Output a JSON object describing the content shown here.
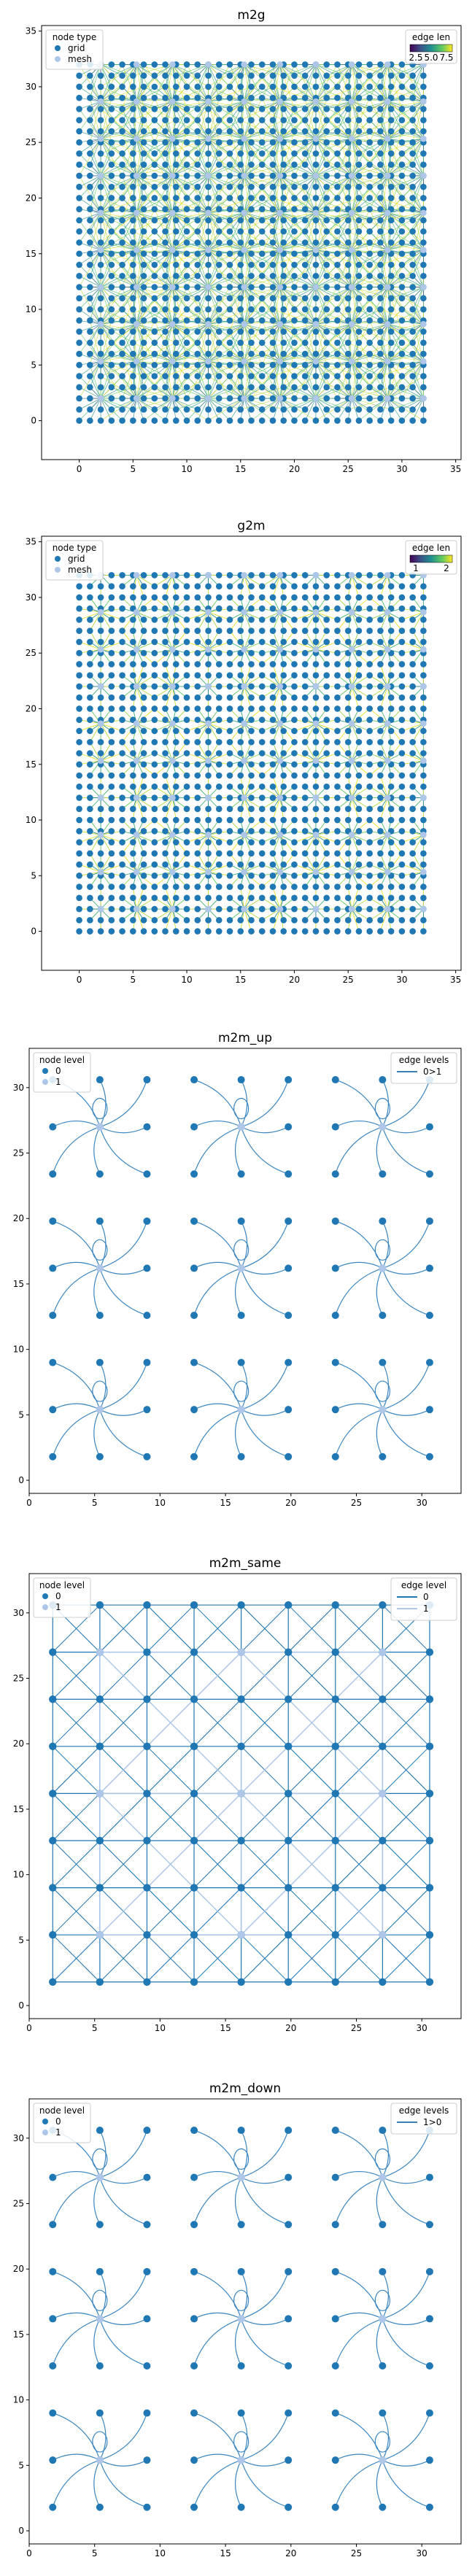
{
  "colors": {
    "level0": "#1f77b4",
    "level1": "#aec7e8",
    "mid": "#3b9ab2",
    "viridis": [
      "#440154",
      "#3b528b",
      "#21908d",
      "#5dc963",
      "#fde725"
    ]
  },
  "chart_data": [
    {
      "type": "scatter",
      "title": "m2g",
      "xlim": [
        -3.5,
        35.5
      ],
      "ylim": [
        -3.5,
        35.5
      ],
      "xticks": [
        "0",
        "5",
        "10",
        "15",
        "20",
        "25",
        "30",
        "35"
      ],
      "yticks": [
        "0",
        "5",
        "10",
        "15",
        "20",
        "25",
        "30",
        "35"
      ],
      "legend_title": "node type",
      "legend_loc": "upper-left",
      "series": [
        {
          "name": "grid",
          "color": "#1f77b4",
          "x_range": [
            0,
            32
          ],
          "y_range": [
            0,
            32
          ],
          "count_per_axis": 32
        },
        {
          "name": "mesh",
          "color": "#aec7e8",
          "x": [
            2,
            5.3,
            8.7,
            12,
            15.3,
            18.7,
            22,
            25.3,
            28.7,
            32
          ],
          "y": [
            2,
            5.3,
            8.7,
            12,
            15.3,
            18.7,
            22,
            25.3,
            28.7,
            32
          ]
        }
      ],
      "colorbar": {
        "title": "edge len",
        "ticks": [
          "2.5",
          "5.0",
          "7.5"
        ],
        "loc": "upper-right",
        "cmap": "viridis"
      },
      "edges": {
        "description": "mesh to grid edges",
        "max_len": 7.5
      }
    },
    {
      "type": "scatter",
      "title": "g2m",
      "xlim": [
        -3.5,
        35.5
      ],
      "ylim": [
        -3.5,
        35.5
      ],
      "xticks": [
        "0",
        "5",
        "10",
        "15",
        "20",
        "25",
        "30",
        "35"
      ],
      "yticks": [
        "0",
        "5",
        "10",
        "15",
        "20",
        "25",
        "30",
        "35"
      ],
      "legend_title": "node type",
      "legend_loc": "upper-left",
      "series": [
        {
          "name": "grid",
          "color": "#1f77b4"
        },
        {
          "name": "mesh",
          "color": "#aec7e8"
        }
      ],
      "colorbar": {
        "title": "edge len",
        "ticks": [
          "1",
          "2"
        ],
        "loc": "upper-right",
        "cmap": "viridis"
      }
    },
    {
      "type": "scatter",
      "title": "m2m_up",
      "xlim": [
        0,
        33
      ],
      "ylim": [
        -1,
        33
      ],
      "xticks": [
        "0",
        "5",
        "10",
        "15",
        "20",
        "25",
        "30"
      ],
      "yticks": [
        "0",
        "5",
        "10",
        "15",
        "20",
        "25",
        "30"
      ],
      "legend_title": "node level",
      "legend_loc": "upper-left",
      "series": [
        {
          "name": "0",
          "color": "#1f77b4"
        },
        {
          "name": "1",
          "color": "#aec7e8"
        }
      ],
      "edge_legend": {
        "title": "edge levels",
        "entries": [
          {
            "name": "0>1",
            "color": "#3b7fb4"
          }
        ],
        "loc": "upper-right"
      }
    },
    {
      "type": "scatter",
      "title": "m2m_same",
      "xlim": [
        0,
        33
      ],
      "ylim": [
        -1,
        33
      ],
      "xticks": [
        "0",
        "5",
        "10",
        "15",
        "20",
        "25",
        "30"
      ],
      "yticks": [
        "0",
        "5",
        "10",
        "15",
        "20",
        "25",
        "30"
      ],
      "legend_title": "node level",
      "legend_loc": "upper-left",
      "series": [
        {
          "name": "0",
          "color": "#1f77b4"
        },
        {
          "name": "1",
          "color": "#aec7e8"
        }
      ],
      "edge_legend": {
        "title": "edge level",
        "entries": [
          {
            "name": "0",
            "color": "#1f77b4"
          },
          {
            "name": "1",
            "color": "#aec7e8"
          }
        ],
        "loc": "upper-right"
      }
    },
    {
      "type": "scatter",
      "title": "m2m_down",
      "xlim": [
        0,
        33
      ],
      "ylim": [
        -1,
        33
      ],
      "xticks": [
        "0",
        "5",
        "10",
        "15",
        "20",
        "25",
        "30"
      ],
      "yticks": [
        "0",
        "5",
        "10",
        "15",
        "20",
        "25",
        "30"
      ],
      "legend_title": "node level",
      "legend_loc": "upper-left",
      "series": [
        {
          "name": "0",
          "color": "#1f77b4"
        },
        {
          "name": "1",
          "color": "#aec7e8"
        }
      ],
      "edge_legend": {
        "title": "edge levels",
        "entries": [
          {
            "name": "1>0",
            "color": "#3b7fb4"
          }
        ],
        "loc": "upper-right"
      }
    }
  ]
}
